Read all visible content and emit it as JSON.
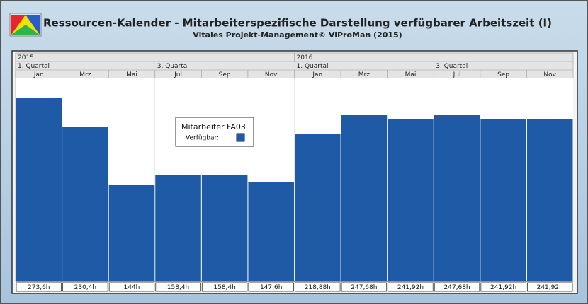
{
  "chart_data": {
    "type": "bar",
    "title": "Ressourcen-Kalender - Mitarbeiterspezifische Darstellung verfügbarer Arbeitszeit (I)",
    "subtitle": "Vitales Projekt-Management© ViProMan  (2015)",
    "years": [
      "2015",
      "2016"
    ],
    "quarters": [
      "1. Quartal",
      "3. Quartal",
      "1. Quartal",
      "3. Quartal"
    ],
    "categories": [
      "Jan",
      "Mrz",
      "Mai",
      "Jul",
      "Sep",
      "Nov",
      "Jan",
      "Mrz",
      "Mai",
      "Jul",
      "Sep",
      "Nov"
    ],
    "legend_title": "Mitarbeiter FA03",
    "series": [
      {
        "name": "Verfügbar:",
        "color": "#1f5aa6",
        "values": [
          273.6,
          230.4,
          144,
          158.4,
          158.4,
          147.6,
          218.88,
          247.68,
          241.92,
          247.68,
          241.92,
          241.92
        ],
        "value_labels": [
          "273,6h",
          "230,4h",
          "144h",
          "158,4h",
          "158,4h",
          "147,6h",
          "218,88h",
          "247,68h",
          "241,92h",
          "247,68h",
          "241,92h",
          "241,92h"
        ]
      }
    ],
    "ylim": [
      0,
      302
    ]
  }
}
